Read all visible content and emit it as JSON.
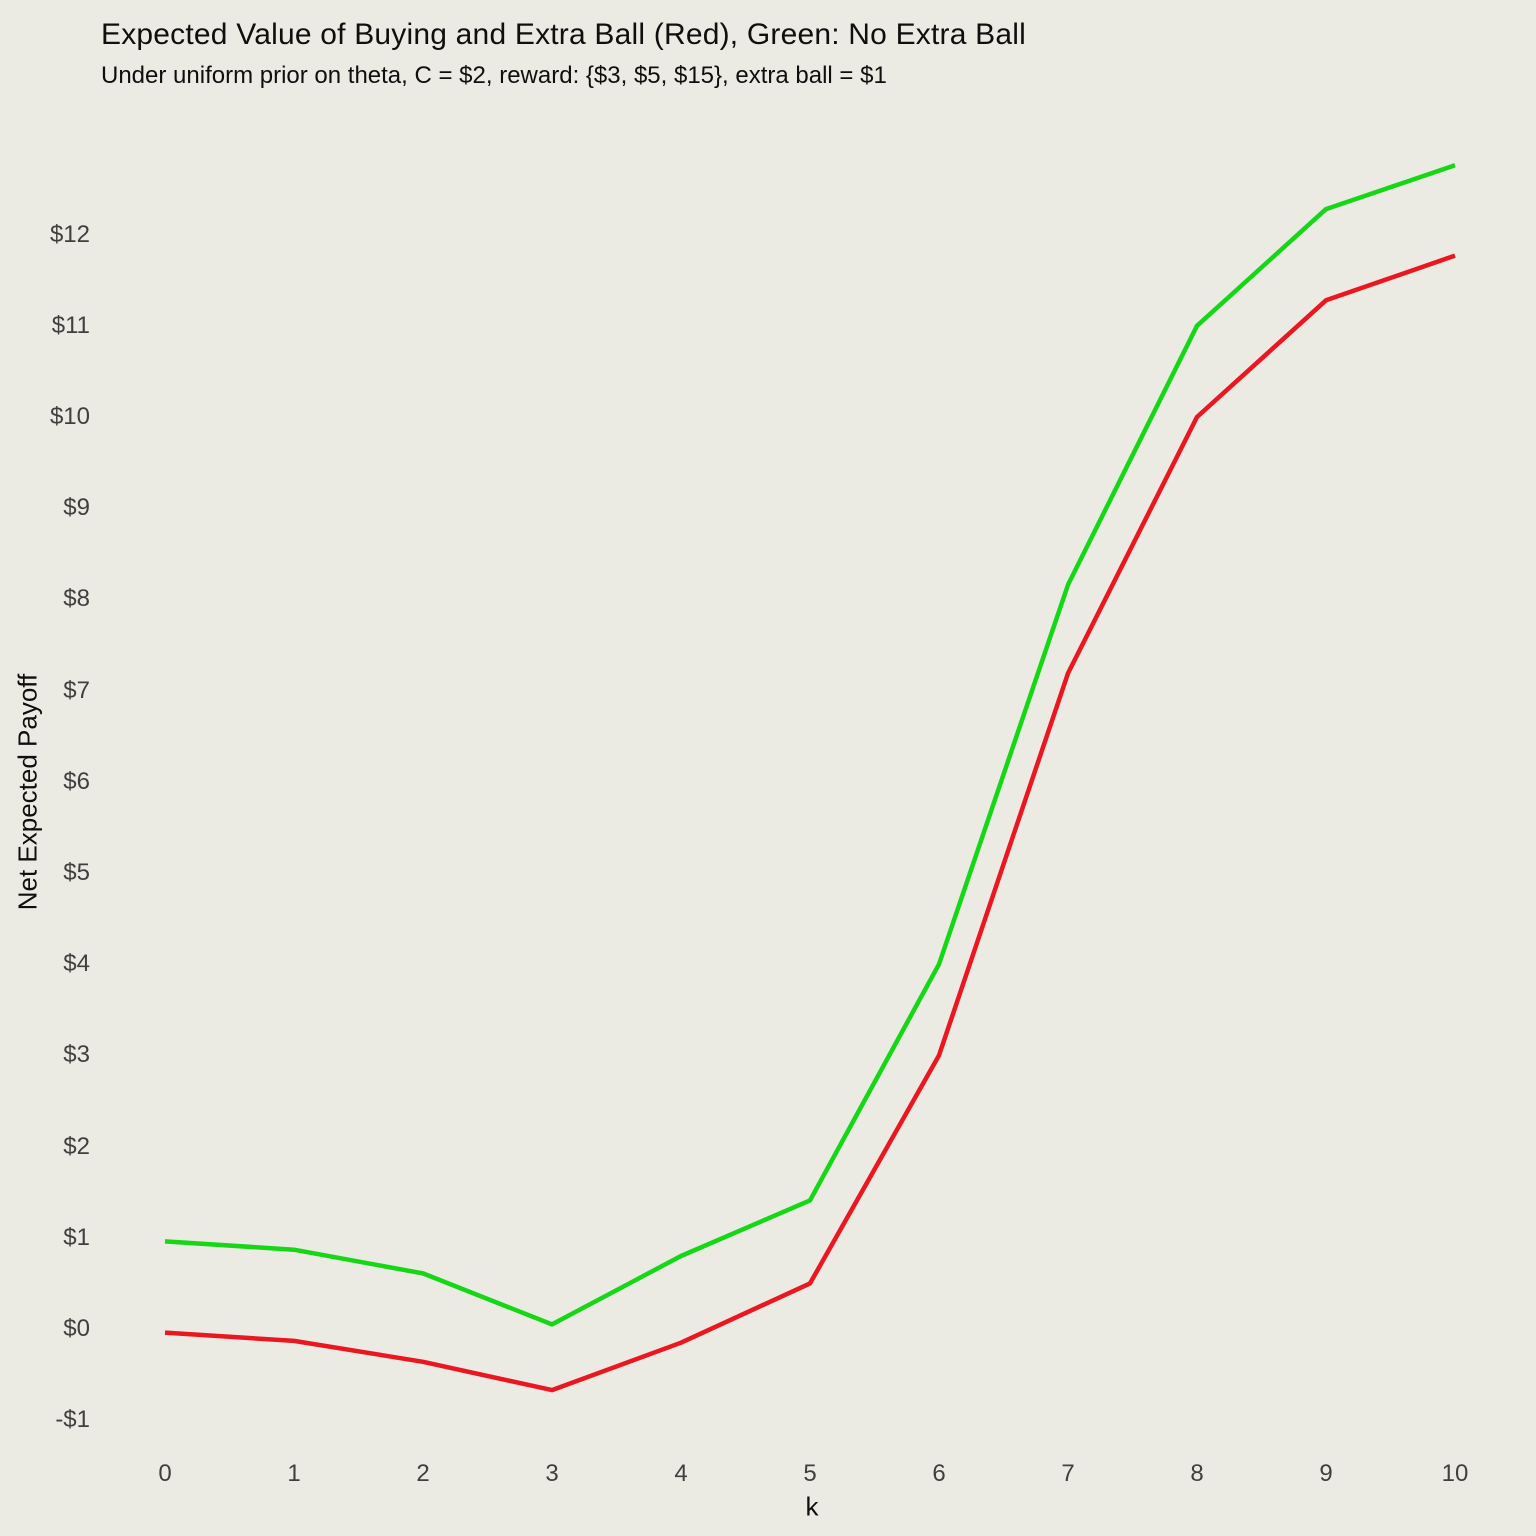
{
  "title": "Expected Value of Buying and Extra Ball (Red), Green: No Extra Ball",
  "subtitle": "Under uniform prior on theta, C = $2, reward: {$3, $5, $15}, extra ball = $1",
  "chart_data": {
    "type": "line",
    "x": [
      0,
      1,
      2,
      3,
      4,
      5,
      6,
      7,
      8,
      9,
      10
    ],
    "series": [
      {
        "name": "Extra Ball (Red)",
        "color": "#ea1620",
        "values": [
          -0.04,
          -0.13,
          -0.36,
          -0.67,
          -0.15,
          0.5,
          3.0,
          7.19,
          10.0,
          11.28,
          11.77
        ]
      },
      {
        "name": "No Extra Ball (Green)",
        "color": "#15d715",
        "values": [
          0.96,
          0.87,
          0.61,
          0.05,
          0.8,
          1.41,
          4.0,
          8.16,
          11.0,
          12.28,
          12.76
        ]
      }
    ],
    "xlabel": "k",
    "ylabel": "Net Expected Payoff",
    "xticks": [
      {
        "value": 0,
        "label": "0"
      },
      {
        "value": 1,
        "label": "1"
      },
      {
        "value": 2,
        "label": "2"
      },
      {
        "value": 3,
        "label": "3"
      },
      {
        "value": 4,
        "label": "4"
      },
      {
        "value": 5,
        "label": "5"
      },
      {
        "value": 6,
        "label": "6"
      },
      {
        "value": 7,
        "label": "7"
      },
      {
        "value": 8,
        "label": "8"
      },
      {
        "value": 9,
        "label": "9"
      },
      {
        "value": 10,
        "label": "10"
      }
    ],
    "yticks": [
      {
        "value": -1,
        "label": "-$1"
      },
      {
        "value": 0,
        "label": "$0"
      },
      {
        "value": 1,
        "label": "$1"
      },
      {
        "value": 2,
        "label": "$2"
      },
      {
        "value": 3,
        "label": "$3"
      },
      {
        "value": 4,
        "label": "$4"
      },
      {
        "value": 5,
        "label": "$5"
      },
      {
        "value": 6,
        "label": "$6"
      },
      {
        "value": 7,
        "label": "$7"
      },
      {
        "value": 8,
        "label": "$8"
      },
      {
        "value": 9,
        "label": "$9"
      },
      {
        "value": 10,
        "label": "$10"
      },
      {
        "value": 11,
        "label": "$11"
      },
      {
        "value": 12,
        "label": "$12"
      }
    ],
    "xlim": [
      0,
      10
    ],
    "ylim": [
      -1.3,
      13.0
    ],
    "grid": false,
    "legend": "none",
    "background": "#ECEBE3"
  }
}
